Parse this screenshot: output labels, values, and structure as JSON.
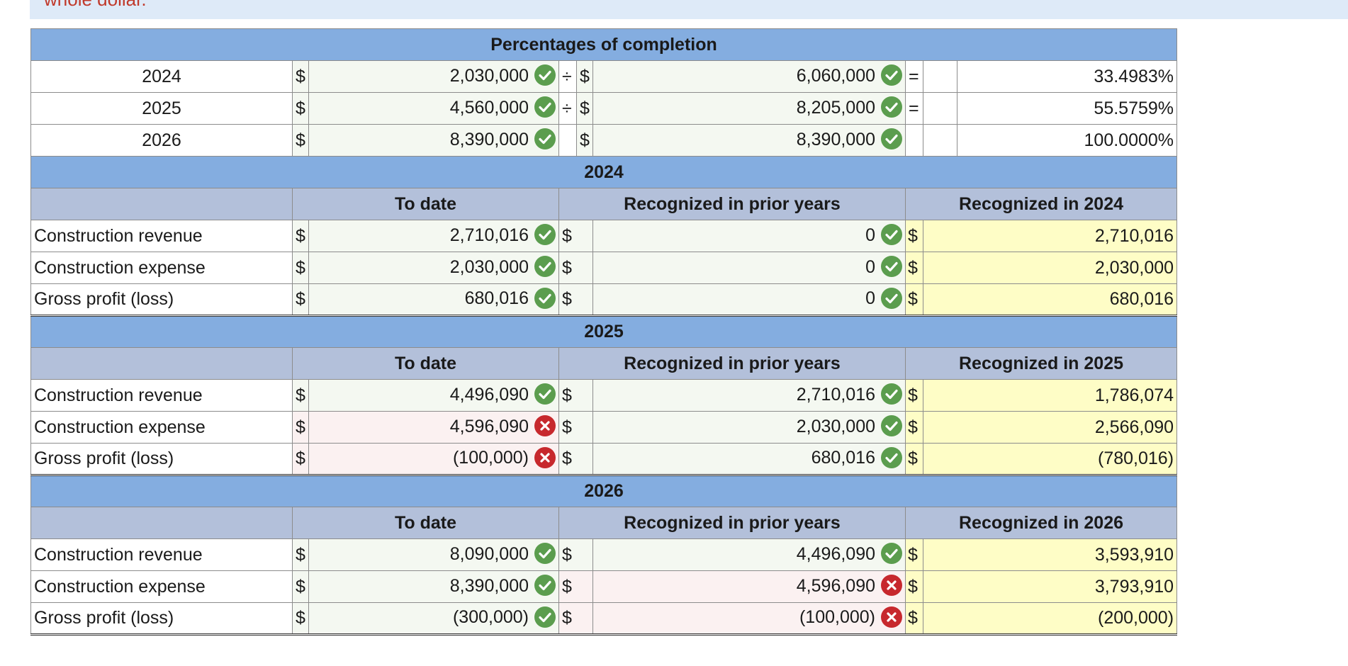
{
  "top_text": "whole dollar.",
  "percent_title": "Percentages of completion",
  "percent_rows": [
    {
      "year": "2024",
      "currency1": "$",
      "cost_to_date": "2,030,000",
      "op": "÷",
      "currency2": "$",
      "total_cost": "6,060,000",
      "eq": "=",
      "pct": "33.4983%"
    },
    {
      "year": "2025",
      "currency1": "$",
      "cost_to_date": "4,560,000",
      "op": "÷",
      "currency2": "$",
      "total_cost": "8,205,000",
      "eq": "=",
      "pct": "55.5759%"
    },
    {
      "year": "2026",
      "currency1": "$",
      "cost_to_date": "8,390,000",
      "op": "",
      "currency2": "$",
      "total_cost": "8,390,000",
      "eq": "",
      "pct": "100.0000%"
    }
  ],
  "sections": [
    {
      "year": "2024",
      "col_to_date": "To date",
      "col_prior": "Recognized in prior years",
      "col_current": "Recognized in 2024",
      "rows": [
        {
          "label": "Construction revenue",
          "c1": "$",
          "to_date": "2,710,016",
          "to_date_status": "correct",
          "c2": "$",
          "prior": "0",
          "prior_status": "correct",
          "c3": "$",
          "current": "2,710,016"
        },
        {
          "label": "Construction expense",
          "c1": "$",
          "to_date": "2,030,000",
          "to_date_status": "correct",
          "c2": "$",
          "prior": "0",
          "prior_status": "correct",
          "c3": "$",
          "current": "2,030,000"
        },
        {
          "label": "Gross profit (loss)",
          "c1": "$",
          "to_date": "680,016",
          "to_date_status": "correct",
          "c2": "$",
          "prior": "0",
          "prior_status": "correct",
          "c3": "$",
          "current": "680,016"
        }
      ]
    },
    {
      "year": "2025",
      "col_to_date": "To date",
      "col_prior": "Recognized in prior years",
      "col_current": "Recognized in 2025",
      "rows": [
        {
          "label": "Construction revenue",
          "c1": "$",
          "to_date": "4,496,090",
          "to_date_status": "correct",
          "c2": "$",
          "prior": "2,710,016",
          "prior_status": "correct",
          "c3": "$",
          "current": "1,786,074"
        },
        {
          "label": "Construction expense",
          "c1": "$",
          "to_date": "4,596,090",
          "to_date_status": "incorrect",
          "c2": "$",
          "prior": "2,030,000",
          "prior_status": "correct",
          "c3": "$",
          "current": "2,566,090"
        },
        {
          "label": "Gross profit (loss)",
          "c1": "$",
          "to_date": "(100,000)",
          "to_date_status": "incorrect",
          "c2": "$",
          "prior": "680,016",
          "prior_status": "correct",
          "c3": "$",
          "current": "(780,016)"
        }
      ]
    },
    {
      "year": "2026",
      "col_to_date": "To date",
      "col_prior": "Recognized in prior years",
      "col_current": "Recognized in 2026",
      "rows": [
        {
          "label": "Construction revenue",
          "c1": "$",
          "to_date": "8,090,000",
          "to_date_status": "correct",
          "c2": "$",
          "prior": "4,496,090",
          "prior_status": "correct",
          "c3": "$",
          "current": "3,593,910"
        },
        {
          "label": "Construction expense",
          "c1": "$",
          "to_date": "8,390,000",
          "to_date_status": "correct",
          "c2": "$",
          "prior": "4,596,090",
          "prior_status": "incorrect",
          "c3": "$",
          "current": "3,793,910"
        },
        {
          "label": "Gross profit (loss)",
          "c1": "$",
          "to_date": "(300,000)",
          "to_date_status": "correct",
          "c2": "$",
          "prior": "(100,000)",
          "prior_status": "incorrect",
          "c3": "$",
          "current": "(200,000)"
        }
      ]
    }
  ],
  "colors": {
    "section_header": "#84ade0",
    "sub_header": "#b3c0da",
    "result_fill": "#fefdc6",
    "correct": "#5b9d4e",
    "incorrect": "#c7282d"
  }
}
